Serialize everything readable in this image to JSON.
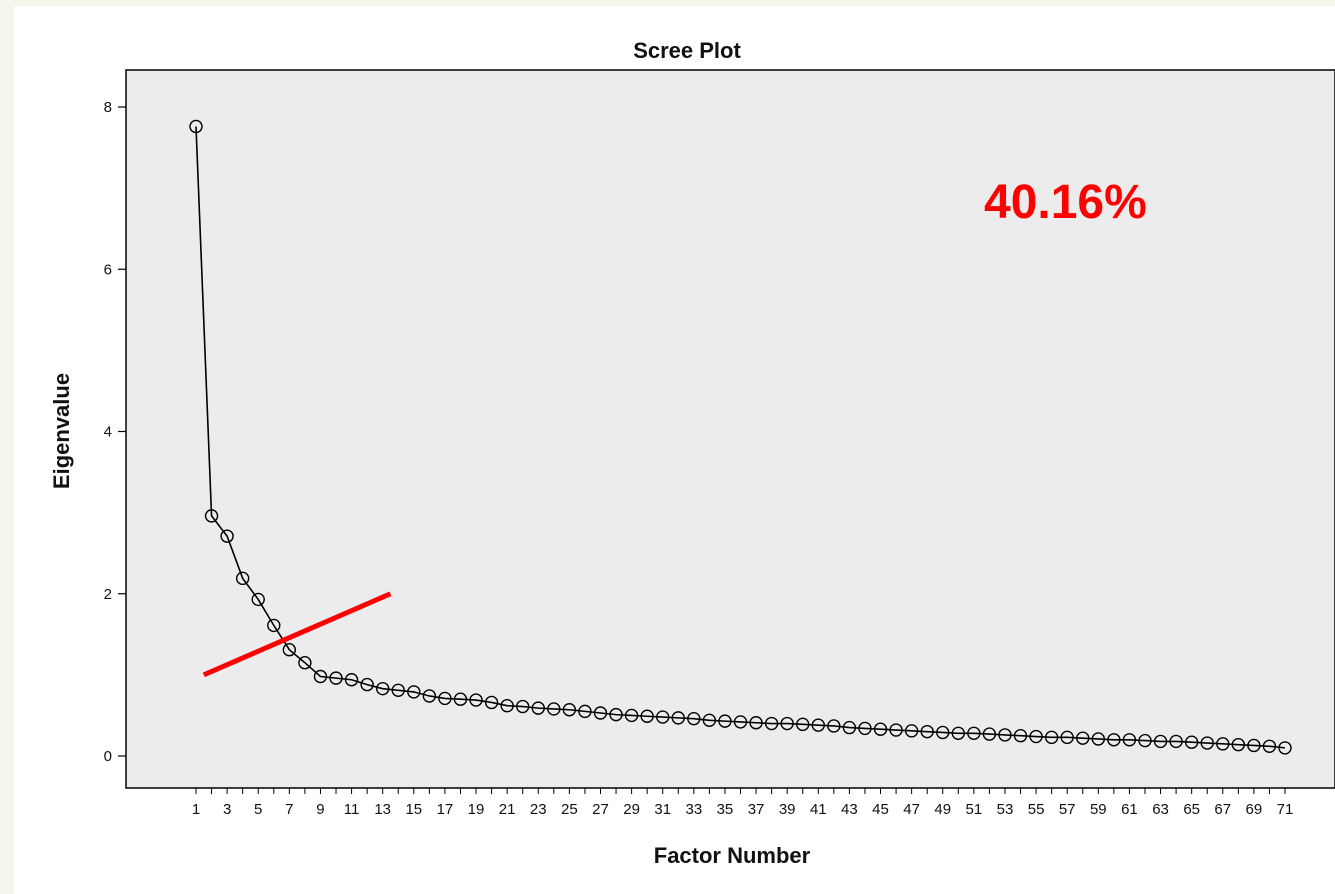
{
  "colors": {
    "annotation": "#ff0000",
    "plot_bg": "#ececec",
    "line": "#000000"
  },
  "chart_data": {
    "type": "line",
    "title": "Scree Plot",
    "xlabel": "Factor Number",
    "ylabel": "Eigenvalue",
    "xlim": [
      1,
      71
    ],
    "ylim": [
      0,
      8
    ],
    "yticks": [
      0,
      2,
      4,
      6,
      8
    ],
    "xticks": [
      1,
      3,
      5,
      7,
      9,
      11,
      13,
      15,
      17,
      19,
      21,
      23,
      25,
      27,
      29,
      31,
      33,
      35,
      37,
      39,
      41,
      43,
      45,
      47,
      49,
      51,
      53,
      55,
      57,
      59,
      61,
      63,
      65,
      67,
      69,
      71
    ],
    "grid": false,
    "markers": "open-circle",
    "series": [
      {
        "x": [
          1,
          2,
          3,
          4,
          5,
          6,
          7,
          8,
          9,
          10,
          11,
          12,
          13,
          14,
          15,
          16,
          17,
          18,
          19,
          20,
          21,
          22,
          23,
          24,
          25,
          26,
          27,
          28,
          29,
          30,
          31,
          32,
          33,
          34,
          35,
          36,
          37,
          38,
          39,
          40,
          41,
          42,
          43,
          44,
          45,
          46,
          47,
          48,
          49,
          50,
          51,
          52,
          53,
          54,
          55,
          56,
          57,
          58,
          59,
          60,
          61,
          62,
          63,
          64,
          65,
          66,
          67,
          68,
          69,
          70,
          71
        ],
        "values": [
          7.76,
          2.96,
          2.71,
          2.19,
          1.93,
          1.61,
          1.31,
          1.15,
          0.98,
          0.96,
          0.94,
          0.88,
          0.83,
          0.81,
          0.79,
          0.74,
          0.71,
          0.7,
          0.69,
          0.66,
          0.62,
          0.61,
          0.59,
          0.58,
          0.57,
          0.55,
          0.53,
          0.51,
          0.5,
          0.49,
          0.48,
          0.47,
          0.46,
          0.44,
          0.43,
          0.42,
          0.41,
          0.4,
          0.4,
          0.39,
          0.38,
          0.37,
          0.35,
          0.34,
          0.33,
          0.32,
          0.31,
          0.3,
          0.29,
          0.28,
          0.28,
          0.27,
          0.26,
          0.25,
          0.24,
          0.23,
          0.23,
          0.22,
          0.21,
          0.2,
          0.2,
          0.19,
          0.18,
          0.18,
          0.17,
          0.16,
          0.15,
          0.14,
          0.13,
          0.12,
          0.1
        ]
      }
    ],
    "annotations": [
      {
        "text": "40.16%",
        "color": "#ff0000"
      },
      {
        "type": "red-line",
        "x": [
          1.5,
          13.5
        ],
        "y": [
          1.0,
          2.0
        ],
        "color": "#ff0000"
      }
    ]
  }
}
